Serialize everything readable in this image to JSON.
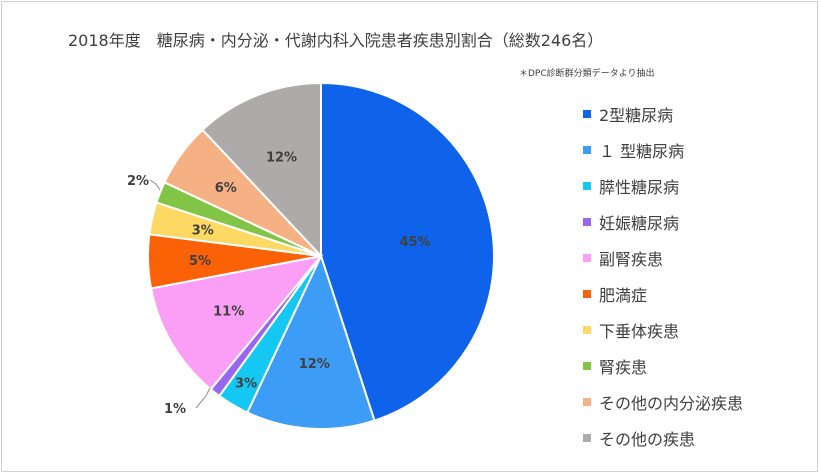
{
  "chart_data": {
    "type": "pie",
    "title": "2018年度　糖尿病・内分泌・代謝内科入院患者疾患別割合（総数246名）",
    "note": "＊DPC診断群分類データより抽出",
    "legend_position": "right",
    "slices": [
      {
        "label": "2型糖尿病",
        "value": 45,
        "display": "45%",
        "color": "#0e63ea"
      },
      {
        "label": "１ 型糖尿病",
        "value": 12,
        "display": "12%",
        "color": "#3d9cf5"
      },
      {
        "label": "膵性糖尿病",
        "value": 3,
        "display": "3%",
        "color": "#14c8f3"
      },
      {
        "label": "妊娠糖尿病",
        "value": 1,
        "display": "1%",
        "color": "#9966f0"
      },
      {
        "label": "副腎疾患",
        "value": 11,
        "display": "11%",
        "color": "#fb9ef6"
      },
      {
        "label": "肥満症",
        "value": 5,
        "display": "5%",
        "color": "#fb6207"
      },
      {
        "label": "下垂体疾患",
        "value": 3,
        "display": "3%",
        "color": "#fdd863"
      },
      {
        "label": "腎疾患",
        "value": 2,
        "display": "2%",
        "color": "#82c546"
      },
      {
        "label": "その他の内分泌疾患",
        "value": 6,
        "display": "6%",
        "color": "#f5b083"
      },
      {
        "label": "その他の疾患",
        "value": 12,
        "display": "12%",
        "color": "#aeaaaa"
      }
    ]
  }
}
